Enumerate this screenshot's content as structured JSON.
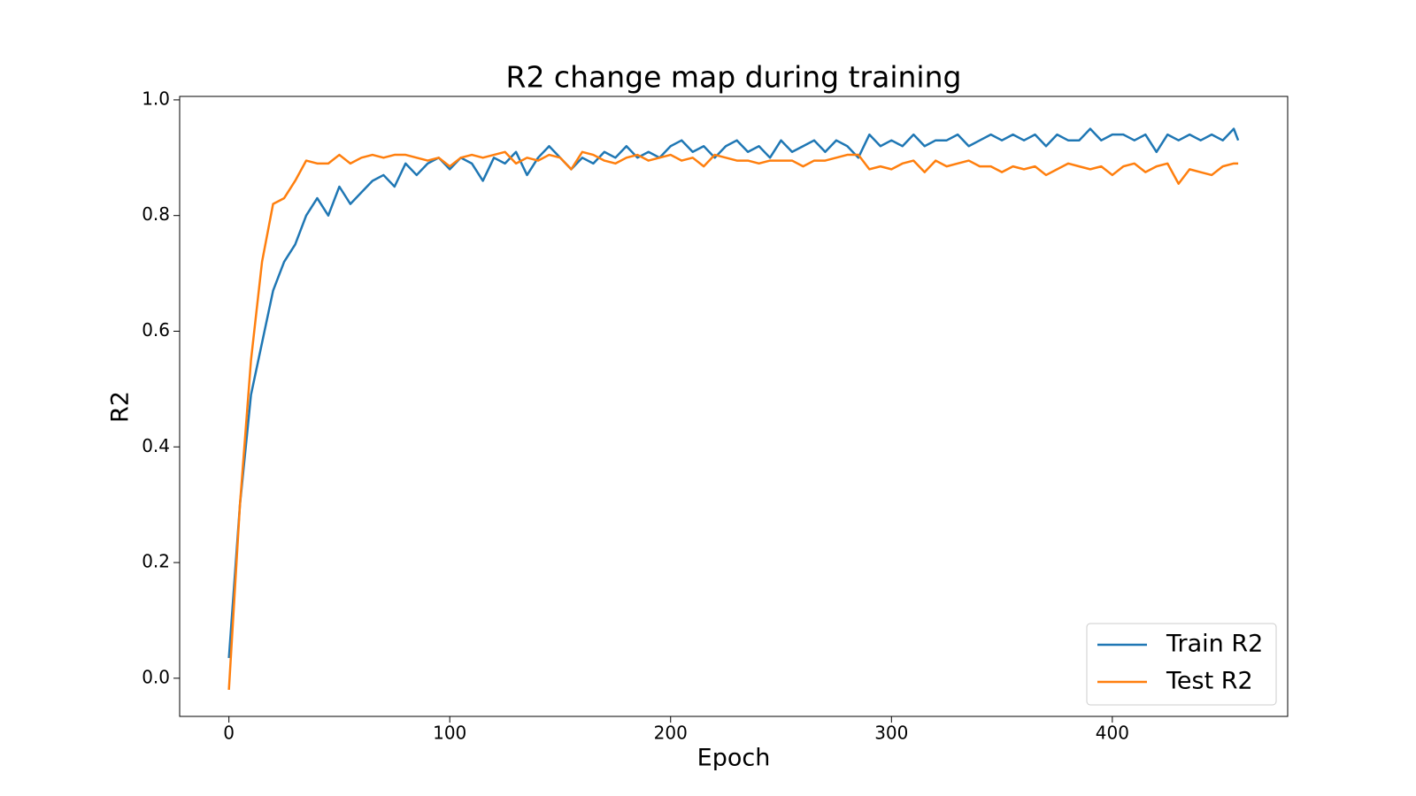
{
  "chart_data": {
    "type": "line",
    "title": "R2 change map during training",
    "xlabel": "Epoch",
    "ylabel": "R2",
    "x": [
      0,
      5,
      10,
      15,
      20,
      25,
      30,
      35,
      40,
      45,
      50,
      55,
      60,
      65,
      70,
      75,
      80,
      85,
      90,
      95,
      100,
      105,
      110,
      115,
      120,
      125,
      130,
      135,
      140,
      145,
      150,
      155,
      160,
      165,
      170,
      175,
      180,
      185,
      190,
      195,
      200,
      205,
      210,
      215,
      220,
      225,
      230,
      235,
      240,
      245,
      250,
      255,
      260,
      265,
      270,
      275,
      280,
      285,
      290,
      295,
      300,
      305,
      310,
      315,
      320,
      325,
      330,
      335,
      340,
      345,
      350,
      355,
      360,
      365,
      370,
      375,
      380,
      385,
      390,
      395,
      400,
      405,
      410,
      415,
      420,
      425,
      430,
      435,
      440,
      445,
      450,
      455,
      457
    ],
    "series": [
      {
        "name": "Train R2",
        "color": "#1f77b4",
        "values": [
          0.035,
          0.3,
          0.49,
          0.58,
          0.67,
          0.72,
          0.75,
          0.8,
          0.83,
          0.8,
          0.85,
          0.82,
          0.84,
          0.86,
          0.87,
          0.85,
          0.89,
          0.87,
          0.89,
          0.9,
          0.88,
          0.9,
          0.89,
          0.86,
          0.9,
          0.89,
          0.91,
          0.87,
          0.9,
          0.92,
          0.9,
          0.88,
          0.9,
          0.89,
          0.91,
          0.9,
          0.92,
          0.9,
          0.91,
          0.9,
          0.92,
          0.93,
          0.91,
          0.92,
          0.9,
          0.92,
          0.93,
          0.91,
          0.92,
          0.9,
          0.93,
          0.91,
          0.92,
          0.93,
          0.91,
          0.93,
          0.92,
          0.9,
          0.94,
          0.92,
          0.93,
          0.92,
          0.94,
          0.92,
          0.93,
          0.93,
          0.94,
          0.92,
          0.93,
          0.94,
          0.93,
          0.94,
          0.93,
          0.94,
          0.92,
          0.94,
          0.93,
          0.93,
          0.95,
          0.93,
          0.94,
          0.94,
          0.93,
          0.94,
          0.91,
          0.94,
          0.93,
          0.94,
          0.93,
          0.94,
          0.93,
          0.95,
          0.93
        ]
      },
      {
        "name": "Test R2",
        "color": "#ff7f0e",
        "values": [
          -0.02,
          0.3,
          0.55,
          0.72,
          0.82,
          0.83,
          0.86,
          0.895,
          0.89,
          0.89,
          0.905,
          0.89,
          0.9,
          0.905,
          0.9,
          0.905,
          0.905,
          0.9,
          0.895,
          0.9,
          0.885,
          0.9,
          0.905,
          0.9,
          0.905,
          0.91,
          0.89,
          0.9,
          0.895,
          0.905,
          0.9,
          0.88,
          0.91,
          0.905,
          0.895,
          0.89,
          0.9,
          0.905,
          0.895,
          0.9,
          0.905,
          0.895,
          0.9,
          0.885,
          0.905,
          0.9,
          0.895,
          0.895,
          0.89,
          0.895,
          0.895,
          0.895,
          0.885,
          0.895,
          0.895,
          0.9,
          0.905,
          0.905,
          0.88,
          0.885,
          0.88,
          0.89,
          0.895,
          0.875,
          0.895,
          0.885,
          0.89,
          0.895,
          0.885,
          0.885,
          0.875,
          0.885,
          0.88,
          0.885,
          0.87,
          0.88,
          0.89,
          0.885,
          0.88,
          0.885,
          0.87,
          0.885,
          0.89,
          0.875,
          0.885,
          0.89,
          0.855,
          0.88,
          0.875,
          0.87,
          0.885,
          0.89,
          0.89
        ]
      }
    ],
    "xlim": [
      -22.3,
      479.4
    ],
    "ylim": [
      -0.066,
      1.006
    ],
    "xticks": [
      0,
      100,
      200,
      300,
      400
    ],
    "yticks": [
      {
        "value": 0,
        "label": "0.0"
      },
      0.2,
      0.4,
      0.6,
      0.8,
      {
        "value": 1,
        "label": "1.0"
      }
    ],
    "legend": "lower right"
  }
}
